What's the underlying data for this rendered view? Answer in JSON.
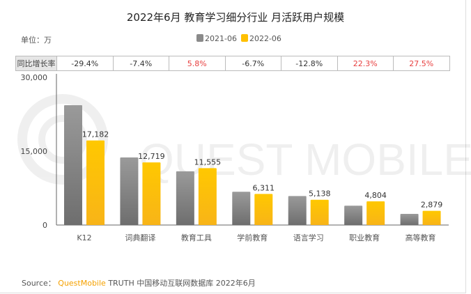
{
  "chart_data": {
    "type": "bar",
    "title": "2022年6月 教育学习细分行业 月活跃用户规模",
    "unit_label": "单位：万",
    "categories": [
      "K12",
      "词典翻译",
      "教育工具",
      "学前教育",
      "语言学习",
      "职业教育",
      "高等教育"
    ],
    "series": [
      {
        "name": "2021-06",
        "color": "#8a8a8a",
        "values": [
          24337,
          13735,
          10922,
          6764,
          5892,
          3928,
          2258
        ]
      },
      {
        "name": "2022-06",
        "color": "#ffc000",
        "values": [
          17182,
          12719,
          11555,
          6311,
          5138,
          4804,
          2879
        ],
        "data_labels": [
          "17,182",
          "12,719",
          "11,555",
          "6,311",
          "5,138",
          "4,804",
          "2,879"
        ]
      }
    ],
    "yoy_header": "同比增长率",
    "yoy": [
      "-29.4%",
      "-7.4%",
      "5.8%",
      "-6.7%",
      "-12.8%",
      "22.3%",
      "27.5%"
    ],
    "yoy_positive_color": "#e84040",
    "ylim": [
      0,
      30000
    ],
    "yticks": [
      "0",
      "15,000",
      "30,000"
    ],
    "legend_position": "top-center",
    "grid": false
  },
  "watermark": "QUEST MOBILE",
  "source": {
    "prefix": "Source：",
    "brand": "QuestMobile",
    "rest": "TRUTH 中国移动互联网数据库 2022年6月"
  }
}
